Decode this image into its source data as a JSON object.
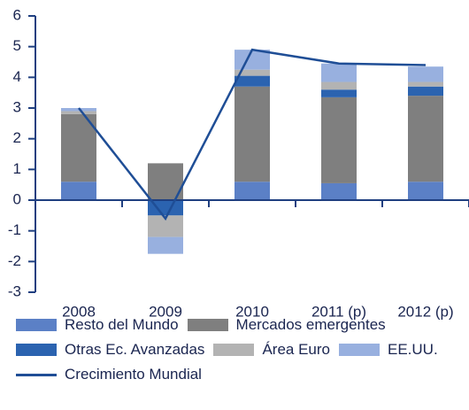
{
  "chart_data": {
    "type": "bar",
    "stacked": true,
    "categories": [
      "2008",
      "2009",
      "2010",
      "2011 (p)",
      "2012 (p)"
    ],
    "series": [
      {
        "name": "Resto del Mundo",
        "color": "#5b80c6",
        "values": [
          0.6,
          0,
          0.6,
          0.55,
          0.6
        ]
      },
      {
        "name": "Mercados emergentes",
        "color": "#7f7f7f",
        "values": [
          2.2,
          1.2,
          3.1,
          2.8,
          2.8
        ]
      },
      {
        "name": "Otras Ec. Avanzadas",
        "color": "#2b63b0",
        "values": [
          0,
          -0.5,
          0.35,
          0.25,
          0.3
        ]
      },
      {
        "name": "Área Euro",
        "color": "#b3b3b3",
        "values": [
          0.1,
          -0.7,
          0.2,
          0.25,
          0.15
        ]
      },
      {
        "name": "EE.UU.",
        "color": "#98b0df",
        "values": [
          0.1,
          -0.55,
          0.65,
          0.6,
          0.5
        ]
      },
      {
        "name": "Crecimiento Mundial",
        "color": "#1f4e96",
        "type": "line",
        "values": [
          3.0,
          -0.6,
          4.9,
          4.45,
          4.4
        ]
      }
    ],
    "ylim": [
      -3,
      6
    ],
    "yticks": [
      -3,
      -2,
      -1,
      0,
      1,
      2,
      3,
      4,
      5,
      6
    ],
    "axis_color": "#1f3f80"
  }
}
